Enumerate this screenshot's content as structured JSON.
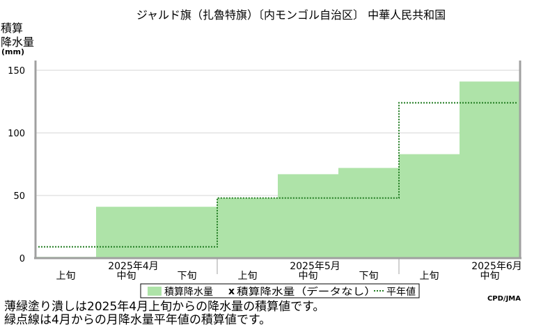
{
  "chart_data": {
    "type": "area",
    "title": "ジャルド旗（扎魯特旗）〔内モンゴル自治区〕 中華人民共和国",
    "ylabel_lines": [
      "積算",
      "降水量"
    ],
    "yunit": "(mm)",
    "ylim": [
      0,
      150
    ],
    "yticks": [
      0,
      50,
      100,
      150
    ],
    "grid": true,
    "periods": [
      "上旬",
      "中旬",
      "下旬",
      "上旬",
      "中旬",
      "下旬",
      "上旬",
      "中旬"
    ],
    "month_labels": [
      "2025年4月",
      "2025年5月",
      "2025年6月"
    ],
    "series": [
      {
        "name": "積算降水量",
        "values": [
          1,
          41,
          41,
          48,
          67,
          72,
          83,
          141
        ]
      },
      {
        "name": "積算降水量（データなし）",
        "values": []
      },
      {
        "name": "平年値",
        "values": [
          9,
          9,
          9,
          48,
          48,
          48,
          124,
          124
        ]
      }
    ]
  },
  "legend": {
    "item1": "積算降水量",
    "item2_marker": "x",
    "item2": "積算降水量（データなし）",
    "item3": "平年値"
  },
  "credit": "CPD/JMA",
  "notes": [
    "薄緑塗り潰しは2025年4月上旬からの降水量の積算値です。",
    "緑点線は4月からの月降水量平年値の積算値です。"
  ],
  "colors": {
    "fill": "#aee3a8",
    "normal_line": "#1f7a1f",
    "axis": "#a0a0a0",
    "grid": "#d4d4d4"
  }
}
